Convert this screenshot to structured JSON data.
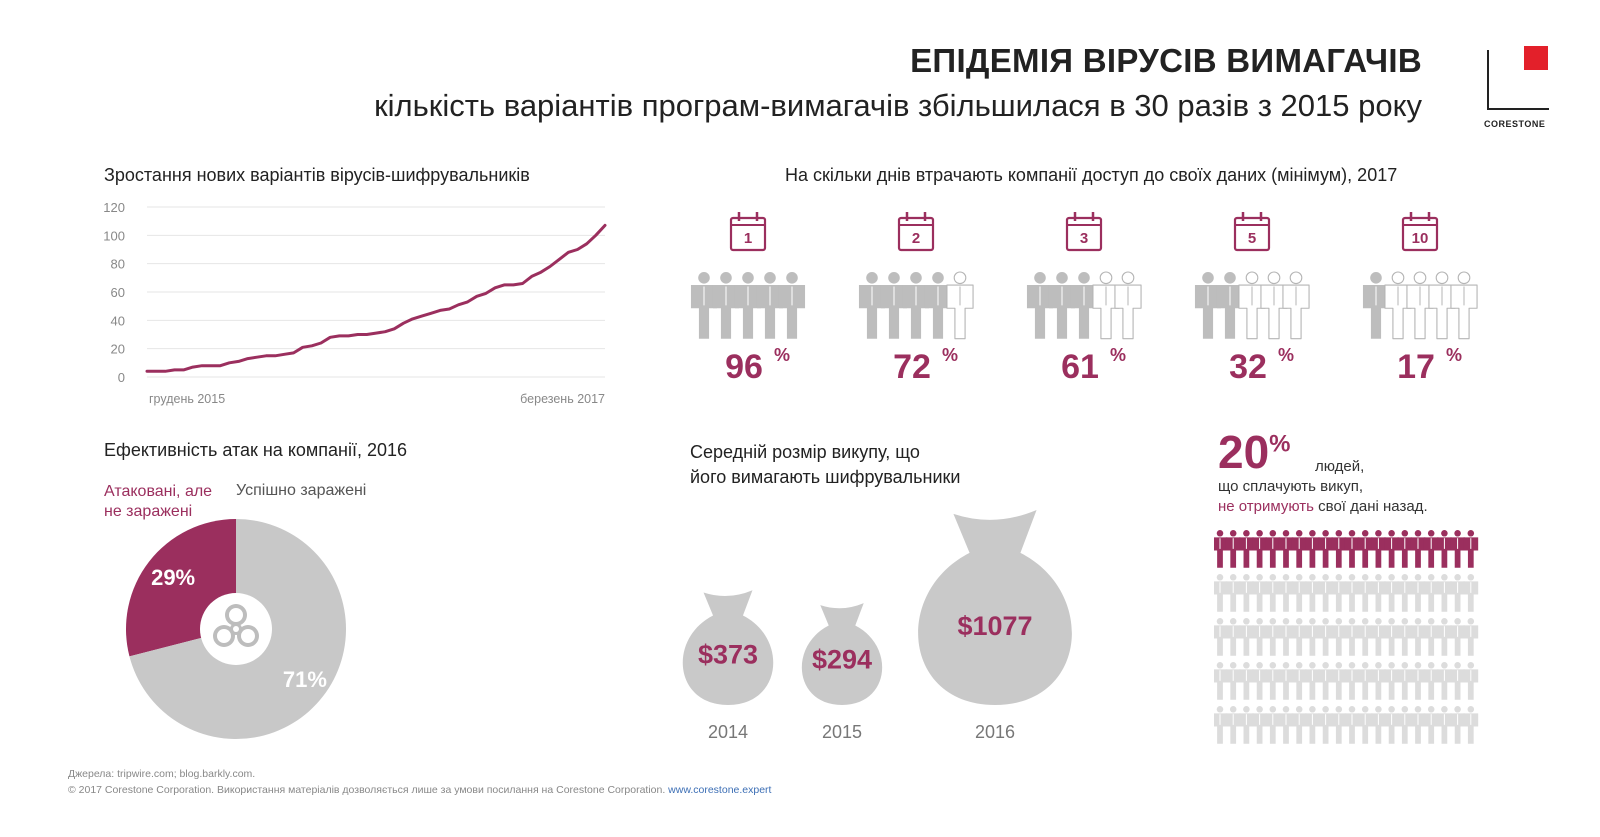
{
  "header": {
    "title": "ЕПІДЕМІЯ ВІРУСІВ ВИМАГАЧІВ",
    "subtitle": "кількість варіантів програм-вимагачів збільшилася в 30 разів з 2015 року"
  },
  "logo": {
    "text": "CORESTONE",
    "accent_color": "#e3202a"
  },
  "colors": {
    "accent": "#9b2f5e",
    "grey": "#c8c8c8",
    "dark": "#222222"
  },
  "line_chart": {
    "title": "Зростання нових варіантів вірусів-шифрувальників",
    "chart_data": {
      "type": "line",
      "y_ticks": [
        "120",
        "100",
        "80",
        "60",
        "40",
        "20",
        "0"
      ],
      "ylim": [
        0,
        120
      ],
      "x_start_label": "грудень 2015",
      "x_end_label": "березень 2017",
      "values": [
        4,
        4,
        4,
        5,
        5,
        7,
        8,
        8,
        8,
        10,
        11,
        13,
        14,
        15,
        15,
        16,
        17,
        21,
        22,
        24,
        28,
        29,
        29,
        30,
        30,
        31,
        32,
        34,
        38,
        41,
        43,
        45,
        47,
        48,
        51,
        53,
        57,
        59,
        63,
        65,
        65,
        66,
        71,
        74,
        78,
        83,
        88,
        90,
        94,
        100,
        107
      ]
    }
  },
  "days_chart": {
    "title": "На скільки днів втрачають компанії доступ до своїх даних (мінімум), 2017",
    "chart_data": {
      "type": "bar",
      "categories": [
        "1",
        "2",
        "3",
        "5",
        "10"
      ],
      "values": [
        96,
        72,
        61,
        32,
        17
      ],
      "value_labels": [
        "96",
        "72",
        "61",
        "32",
        "17"
      ],
      "unit": "%"
    }
  },
  "pie": {
    "title": "Ефективність атак на компанії, 2016",
    "chart_data": {
      "type": "pie",
      "labels": [
        "Атаковані, але не заражені",
        "Успішно заражені"
      ],
      "values": [
        29,
        71
      ],
      "value_labels": [
        "29%",
        "71%"
      ]
    },
    "legend_attacked_line1": "Атаковані, але",
    "legend_attacked_line2": "не заражені",
    "legend_infected": "Успішно заражені"
  },
  "ransom": {
    "title_line1": "Середній розмір викупу, що",
    "title_line2": "його вимагають шифрувальники",
    "chart_data": {
      "type": "bar",
      "categories": [
        "2014",
        "2015",
        "2016"
      ],
      "values": [
        373,
        294,
        1077
      ],
      "value_labels": [
        "$373",
        "$294",
        "$1077"
      ]
    }
  },
  "people_stat": {
    "percent": "20",
    "percent_unit": "%",
    "line1": "людей,",
    "line2": "що сплачують викуп,",
    "line3_accent": "не отримують",
    "line3_rest": " свої дані назад.",
    "highlight_share": 0.2
  },
  "footer": {
    "sources": "Джерела: tripwire.com; blog.barkly.com.",
    "copyright": "© 2017 Corestone Corporation. Використання матеріалів дозволяється лише за умови посилання на Corestone Corporation. ",
    "link": "www.corestone.expert"
  }
}
